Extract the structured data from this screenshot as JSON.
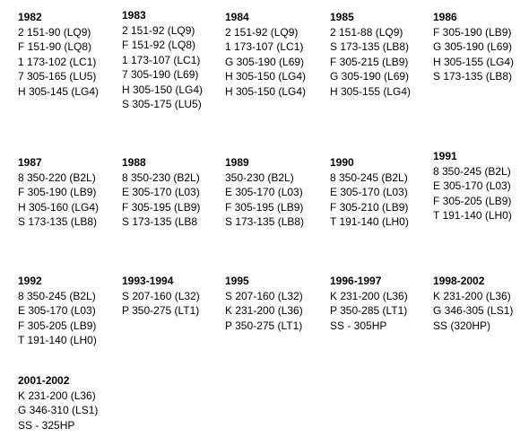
{
  "blocks": [
    {
      "year": "1982",
      "lines": [
        "2 151-90 (LQ9)",
        "F 151-90 (LQ8)",
        "1 173-102 (LC1)",
        "7 305-165 (LU5)",
        "H 305-145 (LG4)"
      ]
    },
    {
      "year": "1983",
      "lines": [
        "2 151-92 (LQ9)",
        "F 151-92 (LQ8)",
        "1 173-107 (LC1)",
        "7 305-190 (L69)",
        "H 305-150 (LG4)",
        "S 305-175 (LU5)"
      ]
    },
    {
      "year": "1984",
      "lines": [
        "2 151-92 (LQ9)",
        "1 173-107 (LC1)",
        "G 305-190 (L69)",
        "H 305-150 (LG4)",
        "H 305-150 (LG4)"
      ]
    },
    {
      "year": "1985",
      "lines": [
        "2 151-88 (LQ9)",
        "S 173-135 (LB8)",
        "F 305-215 (LB9)",
        "G 305-190 (L69)",
        "H 305-155 (LG4)"
      ]
    },
    {
      "year": "1986",
      "lines": [
        "F 305-190 (LB9)",
        "G 305-190 (L69)",
        "H 305-155 (LG4)",
        "S 173-135 (LB8)"
      ]
    },
    {
      "year": "1987",
      "lines": [
        "8 350-220 (B2L)",
        "F 305-190 (LB9)",
        "H 305-160 (LG4)",
        "S 173-135 (LB8)"
      ]
    },
    {
      "year": "1988",
      "lines": [
        "8 350-230 (B2L)",
        "E 305-170 (L03)",
        "F 305-195 (LB9)",
        "S 173-135 (LB8"
      ]
    },
    {
      "year": "1989",
      "lines": [
        "350-230 (B2L)",
        "E 305-170 (L03)",
        "F 305-195 (LB9)",
        "S 173-135 (LB8)"
      ]
    },
    {
      "year": "1990",
      "lines": [
        "8 350-245 (B2L)",
        "E 305-170 (L03)",
        "F 305-210 (LB9)",
        "T 191-140 (LH0)"
      ]
    },
    {
      "year": "1991",
      "lines": [
        "8 350-245 (B2L)",
        "E 305-170 (L03)",
        "F 305-205 (LB9)",
        "T 191-140 (LH0)"
      ]
    },
    {
      "year": "1992",
      "lines": [
        "8 350-245 (B2L)",
        "E 305-170 (L03)",
        "F 305-205 (LB9)",
        "T 191-140 (LH0)"
      ]
    },
    {
      "year": "1993-1994",
      "lines": [
        "S 207-160 (L32)",
        "P 350-275 (LT1)"
      ]
    },
    {
      "year": "1995",
      "lines": [
        "S 207-160 (L32)",
        "K 231-200 (L36)",
        "P 350-275 (LT1)"
      ]
    },
    {
      "year": "1996-1997",
      "lines": [
        "K 231-200 (L36)",
        "P 350-285 (LT1)",
        "SS - 305HP"
      ]
    },
    {
      "year": "1998-2002",
      "lines": [
        "K 231-200 (L36)",
        "G 346-305 (LS1)",
        "SS (320HP)"
      ]
    },
    {
      "year": "2001-2002",
      "lines": [
        "K 231-200 (L36)",
        "G 346-310 (LS1)",
        "SS - 325HP"
      ]
    }
  ]
}
